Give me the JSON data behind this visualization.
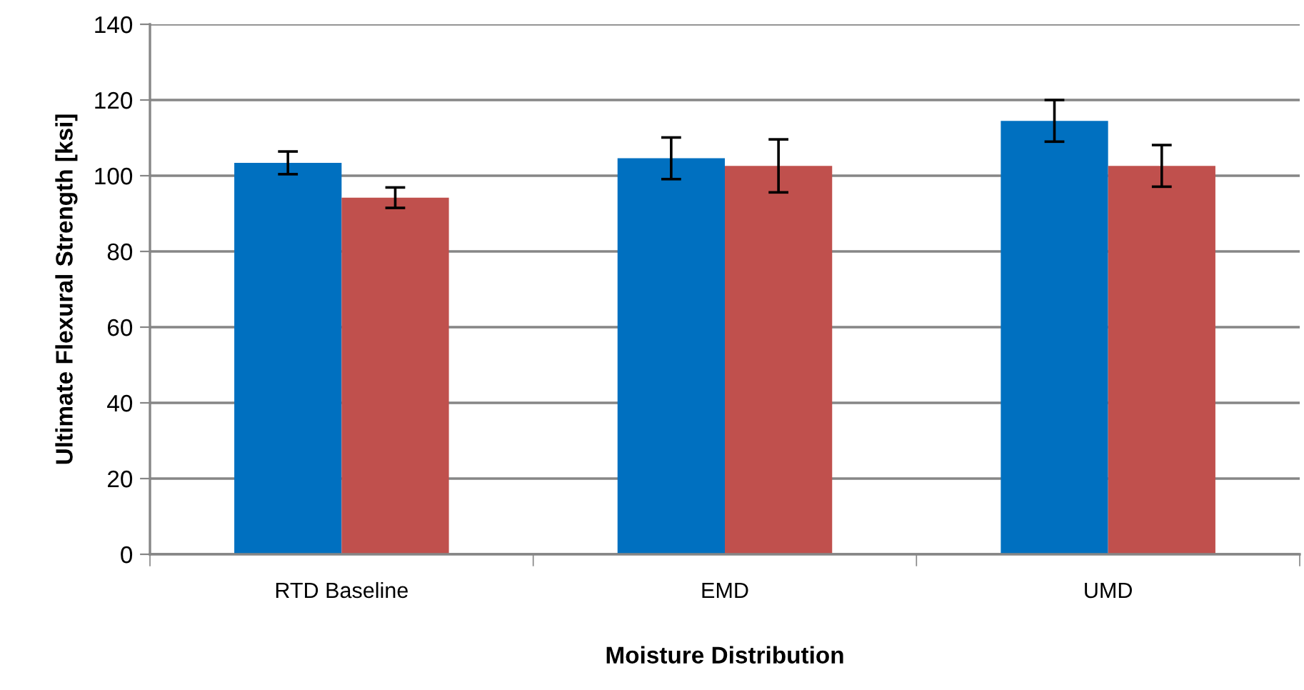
{
  "chart_data": {
    "type": "bar",
    "xlabel": "Moisture Distribution",
    "ylabel": "Ultimate Flexural Strength [ksi]",
    "categories": [
      "RTD Baseline",
      "EMD",
      "UMD"
    ],
    "series": [
      {
        "color": "#0070c0",
        "values": [
          103.4,
          104.6,
          114.5
        ],
        "errors": [
          3,
          5.5,
          5.5
        ]
      },
      {
        "color": "#c0504d",
        "values": [
          94.2,
          102.6,
          102.6
        ],
        "errors": [
          2.7,
          7,
          5.5
        ]
      }
    ],
    "ylim": [
      0,
      140
    ],
    "yticks": [
      0,
      20,
      40,
      60,
      80,
      100,
      120,
      140
    ],
    "grid": "y"
  }
}
